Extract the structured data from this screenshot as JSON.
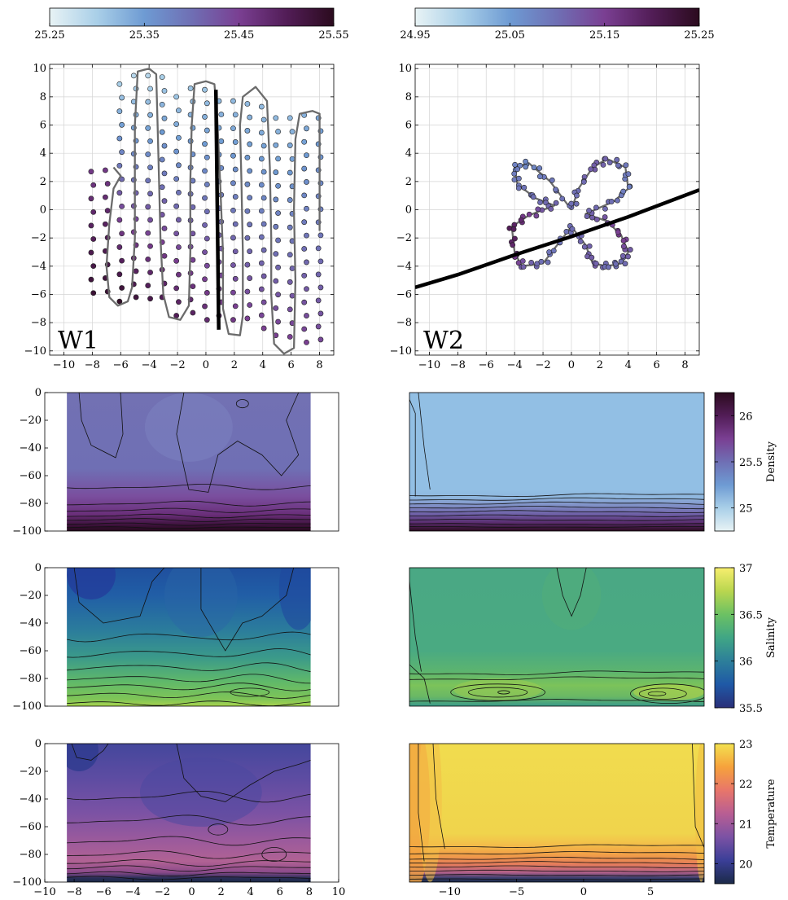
{
  "colors": {
    "density_stops": [
      "#e8f3f5",
      "#a9cfe8",
      "#6e9bd3",
      "#6f6fb4",
      "#7a3f92",
      "#521d57",
      "#2b0b1e"
    ],
    "salinity_stops": [
      "#2a2f79",
      "#1f59a6",
      "#2d7f9a",
      "#40a685",
      "#6cc163",
      "#b9d64f",
      "#f7ee6e"
    ],
    "temperature_stops": [
      "#1b2a48",
      "#3b3f98",
      "#7b52a4",
      "#b85e93",
      "#e8766a",
      "#f6a23c",
      "#f3e150"
    ]
  },
  "chart_data": [
    {
      "id": "w1_map",
      "type": "scatter",
      "label": "W1",
      "xlim": [
        -11,
        9
      ],
      "ylim": [
        -10.3,
        10.3
      ],
      "xticks": [
        -10,
        -8,
        -6,
        -4,
        -2,
        0,
        2,
        4,
        6,
        8
      ],
      "yticks": [
        -10,
        -8,
        -6,
        -4,
        -2,
        0,
        2,
        4,
        6,
        8,
        10
      ],
      "grid": true,
      "colorbar": {
        "ticks": [
          "25.25",
          "25.35",
          "25.45",
          "25.55"
        ],
        "range": [
          25.25,
          25.55
        ],
        "placement": "top"
      },
      "scatter_columns": [
        {
          "x": -8.0,
          "y_top": 2.7,
          "y_bottom": -5.9,
          "d_top": 25.46,
          "d_bottom": 25.53
        },
        {
          "x": -7.0,
          "y_top": 2.8,
          "y_bottom": -5.8,
          "d_top": 25.46,
          "d_bottom": 25.53
        },
        {
          "x": -6.0,
          "y_top": 8.9,
          "y_bottom": -6.5,
          "d_top": 25.3,
          "d_bottom": 25.54
        },
        {
          "x": -5.0,
          "y_top": 9.5,
          "y_bottom": -6.2,
          "d_top": 25.29,
          "d_bottom": 25.52
        },
        {
          "x": -4.0,
          "y_top": 9.5,
          "y_bottom": -6.3,
          "d_top": 25.29,
          "d_bottom": 25.51
        },
        {
          "x": -3.0,
          "y_top": 9.4,
          "y_bottom": -6.2,
          "d_top": 25.3,
          "d_bottom": 25.5
        },
        {
          "x": -2.0,
          "y_top": 8.0,
          "y_bottom": -7.5,
          "d_top": 25.31,
          "d_bottom": 25.5
        },
        {
          "x": -1.0,
          "y_top": 8.6,
          "y_bottom": -7.3,
          "d_top": 25.31,
          "d_bottom": 25.49
        },
        {
          "x": 0.0,
          "y_top": 8.5,
          "y_bottom": -7.8,
          "d_top": 25.31,
          "d_bottom": 25.48
        },
        {
          "x": 1.0,
          "y_top": 7.7,
          "y_bottom": -7.5,
          "d_top": 25.32,
          "d_bottom": 25.47
        },
        {
          "x": 2.0,
          "y_top": 7.7,
          "y_bottom": -7.8,
          "d_top": 25.32,
          "d_bottom": 25.46
        },
        {
          "x": 3.0,
          "y_top": 7.5,
          "y_bottom": -7.7,
          "d_top": 25.32,
          "d_bottom": 25.45
        },
        {
          "x": 4.0,
          "y_top": 7.3,
          "y_bottom": -8.4,
          "d_top": 25.32,
          "d_bottom": 25.45
        },
        {
          "x": 5.0,
          "y_top": 6.5,
          "y_bottom": -8.9,
          "d_top": 25.32,
          "d_bottom": 25.45
        },
        {
          "x": 6.0,
          "y_top": 6.5,
          "y_bottom": -9.0,
          "d_top": 25.32,
          "d_bottom": 25.45
        },
        {
          "x": 7.0,
          "y_top": 6.7,
          "y_bottom": -9.4,
          "d_top": 25.33,
          "d_bottom": 25.45
        },
        {
          "x": 8.0,
          "y_top": 6.5,
          "y_bottom": -9.2,
          "d_top": 25.34,
          "d_bottom": 25.44
        }
      ],
      "track": [
        [
          -6.5,
          3.0
        ],
        [
          -6.0,
          2.4
        ],
        [
          -6.5,
          1.5
        ],
        [
          -6.8,
          -1.0
        ],
        [
          -7.0,
          -4.0
        ],
        [
          -6.8,
          -6.2
        ],
        [
          -6.2,
          -6.8
        ],
        [
          -5.5,
          -6.5
        ],
        [
          -5.2,
          -5.5
        ],
        [
          -5.0,
          -2.0
        ],
        [
          -5.0,
          2.0
        ],
        [
          -5.0,
          6.0
        ],
        [
          -4.8,
          9.8
        ],
        [
          -4.0,
          10.0
        ],
        [
          -3.5,
          9.6
        ],
        [
          -3.4,
          6.0
        ],
        [
          -3.3,
          2.0
        ],
        [
          -3.2,
          -2.0
        ],
        [
          -3.0,
          -6.0
        ],
        [
          -2.6,
          -7.6
        ],
        [
          -1.8,
          -7.8
        ],
        [
          -1.2,
          -6.8
        ],
        [
          -1.1,
          -3.0
        ],
        [
          -1.1,
          2.0
        ],
        [
          -1.0,
          6.0
        ],
        [
          -0.8,
          8.9
        ],
        [
          0.0,
          9.1
        ],
        [
          0.6,
          8.9
        ],
        [
          0.8,
          6.5
        ],
        [
          1.0,
          2.0
        ],
        [
          1.2,
          -3.0
        ],
        [
          1.2,
          -7.0
        ],
        [
          1.6,
          -8.8
        ],
        [
          2.4,
          -8.9
        ],
        [
          2.6,
          -7.5
        ],
        [
          2.6,
          -3.0
        ],
        [
          2.5,
          2.0
        ],
        [
          2.4,
          6.0
        ],
        [
          2.6,
          8.0
        ],
        [
          3.5,
          8.7
        ],
        [
          4.3,
          7.7
        ],
        [
          4.5,
          3.0
        ],
        [
          4.6,
          -2.0
        ],
        [
          4.6,
          -6.0
        ],
        [
          4.8,
          -9.5
        ],
        [
          5.5,
          -10.2
        ],
        [
          6.2,
          -9.8
        ],
        [
          6.3,
          -5.0
        ],
        [
          6.2,
          0.0
        ],
        [
          6.3,
          5.0
        ],
        [
          6.6,
          6.8
        ],
        [
          7.5,
          7.0
        ],
        [
          8.0,
          6.8
        ],
        [
          8.0,
          2.0
        ],
        [
          8.0,
          -1.5
        ]
      ],
      "section_line": {
        "x": [
          0.7,
          0.9
        ],
        "y": [
          8.5,
          -8.5
        ]
      }
    },
    {
      "id": "w2_map",
      "type": "scatter",
      "label": "W2",
      "xlim": [
        -11,
        9
      ],
      "ylim": [
        -10.3,
        10.3
      ],
      "xticks": [
        -10,
        -8,
        -6,
        -4,
        -2,
        0,
        2,
        4,
        6,
        8
      ],
      "yticks": [
        -10,
        -8,
        -6,
        -4,
        -2,
        0,
        2,
        4,
        6,
        8,
        10
      ],
      "grid": true,
      "colorbar": {
        "ticks": [
          "24.95",
          "25.05",
          "25.15",
          "25.25"
        ],
        "range": [
          24.95,
          25.25
        ],
        "placement": "top"
      },
      "track": [
        [
          0,
          0
        ],
        [
          -1.5,
          2.0
        ],
        [
          -3.0,
          3.3
        ],
        [
          -4.0,
          3.0
        ],
        [
          -3.8,
          1.8
        ],
        [
          -2.5,
          0.8
        ],
        [
          -1.2,
          0.3
        ],
        [
          -3.0,
          -0.4
        ],
        [
          -4.2,
          -1.2
        ],
        [
          -4.0,
          -3.0
        ],
        [
          -3.5,
          -4.0
        ],
        [
          -2.0,
          -3.8
        ],
        [
          -1.0,
          -2.5
        ],
        [
          0,
          -1.2
        ],
        [
          1.0,
          -2.5
        ],
        [
          1.5,
          -3.8
        ],
        [
          2.5,
          -4.0
        ],
        [
          3.5,
          -3.8
        ],
        [
          4.0,
          -3.0
        ],
        [
          3.5,
          -1.8
        ],
        [
          2.5,
          -0.8
        ],
        [
          1.0,
          -0.3
        ],
        [
          3.0,
          0.6
        ],
        [
          4.0,
          1.5
        ],
        [
          3.8,
          3.0
        ],
        [
          2.5,
          3.6
        ],
        [
          1.5,
          3.0
        ],
        [
          0.5,
          1.5
        ],
        [
          0,
          0
        ]
      ],
      "track_density": [
        25.1,
        25.09,
        25.07,
        25.08,
        25.09,
        25.1,
        25.11,
        25.15,
        25.2,
        25.18,
        25.12,
        25.1,
        25.09,
        25.1,
        25.11,
        25.12,
        25.1,
        25.1,
        25.12,
        25.16,
        25.13,
        25.11,
        25.1,
        25.08,
        25.09,
        25.11,
        25.12,
        25.1,
        25.1
      ],
      "section_line": {
        "x": [
          -11,
          -8,
          -4,
          0,
          4,
          9
        ],
        "y": [
          -5.5,
          -4.6,
          -3.2,
          -1.9,
          -0.5,
          1.4
        ]
      }
    },
    {
      "id": "w1_density",
      "type": "heatmap",
      "variable": "Density",
      "xlim": [
        -10,
        10
      ],
      "ylim": [
        -100,
        0
      ],
      "data_x": [
        -8.5,
        8.1
      ],
      "yticks": [
        0,
        -20,
        -40,
        -60,
        -80,
        -100
      ],
      "grid": false
    },
    {
      "id": "w2_density",
      "type": "heatmap",
      "variable": "Density",
      "xlim": [
        -13,
        9
      ],
      "ylim": [
        -100,
        0
      ],
      "yticks": [],
      "colorbar": {
        "label": "Density",
        "ticks": [
          "26",
          "25.5",
          "25"
        ],
        "range": [
          24.75,
          26.25
        ],
        "placement": "right"
      }
    },
    {
      "id": "w1_salinity",
      "type": "heatmap",
      "variable": "Salinity",
      "xlim": [
        -10,
        10
      ],
      "ylim": [
        -100,
        0
      ],
      "data_x": [
        -8.5,
        8.1
      ],
      "yticks": [
        0,
        -20,
        -40,
        -60,
        -80,
        -100
      ]
    },
    {
      "id": "w2_salinity",
      "type": "heatmap",
      "variable": "Salinity",
      "xlim": [
        -13,
        9
      ],
      "ylim": [
        -100,
        0
      ],
      "yticks": [],
      "colorbar": {
        "label": "Salinity",
        "ticks": [
          "37",
          "36.5",
          "36",
          "35.5"
        ],
        "range": [
          35.5,
          37
        ],
        "placement": "right"
      }
    },
    {
      "id": "w1_temperature",
      "type": "heatmap",
      "variable": "Temperature",
      "xlim": [
        -10,
        10
      ],
      "ylim": [
        -100,
        0
      ],
      "data_x": [
        -8.5,
        8.1
      ],
      "xticks": [
        -10,
        -8,
        -6,
        -4,
        -2,
        0,
        2,
        4,
        6,
        8,
        10
      ],
      "yticks": [
        0,
        -20,
        -40,
        -60,
        -80,
        -100
      ]
    },
    {
      "id": "w2_temperature",
      "type": "heatmap",
      "variable": "Temperature",
      "xlim": [
        -13,
        9
      ],
      "ylim": [
        -100,
        0
      ],
      "xticks": [
        -10,
        -5,
        0,
        5
      ],
      "yticks": [],
      "colorbar": {
        "label": "Temperature",
        "ticks": [
          "23",
          "22",
          "21",
          "20"
        ],
        "range": [
          19.5,
          23
        ],
        "placement": "right"
      }
    }
  ]
}
